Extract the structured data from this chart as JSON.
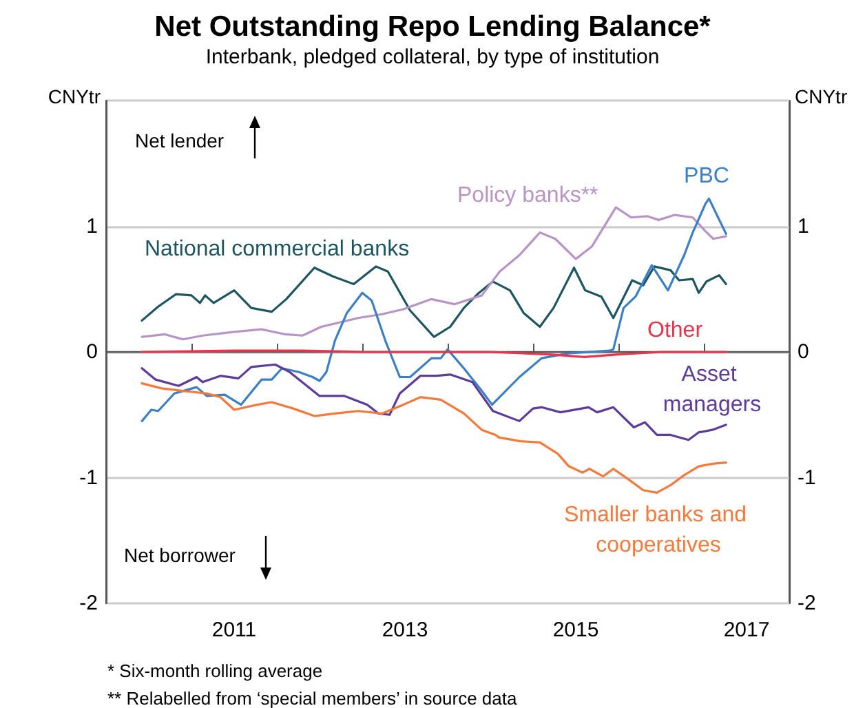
{
  "chart_data": {
    "type": "line",
    "title": "Net Outstanding Repo Lending Balance*",
    "subtitle": "Interbank, pledged collateral, by type of institution",
    "ylabel": "CNYtr",
    "y2label": "CNYtr",
    "annotations": [
      "Net lender",
      "Net borrower",
      "* Six-month rolling average",
      "** Relabelled from ‘special members’ in source data"
    ],
    "xlim": [
      2010,
      2018
    ],
    "xticks": [
      {
        "value": 2011,
        "label": null
      },
      {
        "value": 2011.5,
        "label": "2011"
      },
      {
        "value": 2012,
        "label": null
      },
      {
        "value": 2013,
        "label": null
      },
      {
        "value": 2013.5,
        "label": "2013"
      },
      {
        "value": 2014,
        "label": null
      },
      {
        "value": 2015,
        "label": null
      },
      {
        "value": 2015.5,
        "label": "2015"
      },
      {
        "value": 2016,
        "label": null
      },
      {
        "value": 2017,
        "label": null
      },
      {
        "value": 2017.5,
        "label": "2017"
      }
    ],
    "ylim": [
      -2,
      2
    ],
    "yticks": [
      -2,
      -1,
      0,
      1
    ],
    "y2lim": [
      -2,
      2
    ],
    "y2ticks": [
      -2,
      -1,
      0,
      1
    ],
    "grid": "y",
    "ref_lines": [
      {
        "axis": "y",
        "value": 0,
        "color": "#555555"
      }
    ],
    "series": [
      {
        "name": "National commercial banks",
        "color": "#1d5560",
        "x": [
          2010.42,
          2010.61,
          2010.82,
          2011.0,
          2011.1,
          2011.16,
          2011.26,
          2011.5,
          2011.7,
          2011.94,
          2012.11,
          2012.44,
          2012.66,
          2012.9,
          2013.16,
          2013.3,
          2013.56,
          2013.84,
          2014.03,
          2014.19,
          2014.35,
          2014.53,
          2014.73,
          2014.89,
          2015.08,
          2015.24,
          2015.48,
          2015.61,
          2015.8,
          2015.94,
          2016.16,
          2016.29,
          2016.42,
          2016.61,
          2016.71,
          2016.87,
          2016.94,
          2017.03,
          2017.18,
          2017.26
        ],
        "values": [
          0.25,
          0.36,
          0.46,
          0.45,
          0.39,
          0.45,
          0.39,
          0.49,
          0.35,
          0.32,
          0.42,
          0.67,
          0.6,
          0.54,
          0.68,
          0.64,
          0.33,
          0.12,
          0.2,
          0.35,
          0.46,
          0.56,
          0.49,
          0.31,
          0.2,
          0.35,
          0.67,
          0.49,
          0.44,
          0.27,
          0.57,
          0.53,
          0.68,
          0.65,
          0.57,
          0.58,
          0.47,
          0.56,
          0.61,
          0.54
        ]
      },
      {
        "name": "Policy banks**",
        "color": "#b894c6",
        "x": [
          2010.42,
          2010.69,
          2010.9,
          2011.13,
          2011.5,
          2011.82,
          2012.1,
          2012.3,
          2012.52,
          2012.95,
          2013.23,
          2013.48,
          2013.81,
          2014.08,
          2014.4,
          2014.61,
          2014.84,
          2015.08,
          2015.26,
          2015.5,
          2015.69,
          2015.97,
          2016.15,
          2016.34,
          2016.47,
          2016.66,
          2016.87,
          2017.02,
          2017.11,
          2017.26
        ],
        "values": [
          0.12,
          0.14,
          0.1,
          0.13,
          0.16,
          0.18,
          0.14,
          0.13,
          0.2,
          0.27,
          0.3,
          0.34,
          0.42,
          0.38,
          0.45,
          0.64,
          0.77,
          0.95,
          0.9,
          0.74,
          0.84,
          1.15,
          1.07,
          1.08,
          1.05,
          1.09,
          1.07,
          0.96,
          0.9,
          0.92
        ]
      },
      {
        "name": "PBC",
        "color": "#3b7fc4",
        "x": [
          2010.42,
          2010.53,
          2010.61,
          2010.8,
          2011.06,
          2011.18,
          2011.39,
          2011.58,
          2011.82,
          2011.94,
          2012.06,
          2012.26,
          2012.42,
          2012.5,
          2012.58,
          2012.68,
          2012.82,
          2013.0,
          2013.11,
          2013.27,
          2013.44,
          2013.56,
          2013.81,
          2013.92,
          2014.0,
          2014.19,
          2014.4,
          2014.52,
          2014.84,
          2015.1,
          2015.42,
          2015.9,
          2015.94,
          2016.06,
          2016.2,
          2016.39,
          2016.58,
          2016.77,
          2016.87,
          2017.02,
          2017.06,
          2017.26
        ],
        "values": [
          -0.55,
          -0.46,
          -0.47,
          -0.33,
          -0.28,
          -0.35,
          -0.34,
          -0.42,
          -0.22,
          -0.22,
          -0.13,
          -0.16,
          -0.2,
          -0.23,
          -0.16,
          0.09,
          0.31,
          0.47,
          0.41,
          0.09,
          -0.2,
          -0.2,
          -0.05,
          -0.05,
          0.02,
          -0.13,
          -0.31,
          -0.42,
          -0.2,
          -0.05,
          -0.01,
          0.01,
          0.02,
          0.35,
          0.44,
          0.69,
          0.49,
          0.77,
          0.95,
          1.18,
          1.22,
          0.94
        ]
      },
      {
        "name": "Other",
        "color": "#e9334a",
        "x": [
          2010.42,
          2011.5,
          2012.3,
          2013.0,
          2014.5,
          2015.2,
          2015.6,
          2016.0,
          2016.5,
          2017.26
        ],
        "values": [
          0,
          0.01,
          0.01,
          0,
          0,
          -0.02,
          -0.04,
          -0.02,
          0,
          0
        ]
      },
      {
        "name": "Asset managers",
        "color": "#5c3b9a",
        "x": [
          2010.42,
          2010.58,
          2010.85,
          2011.06,
          2011.13,
          2011.34,
          2011.55,
          2011.7,
          2011.98,
          2012.15,
          2012.5,
          2012.79,
          2013.06,
          2013.19,
          2013.32,
          2013.44,
          2013.68,
          2013.87,
          2014.03,
          2014.29,
          2014.53,
          2014.84,
          2015.0,
          2015.1,
          2015.32,
          2015.65,
          2015.75,
          2015.94,
          2016.18,
          2016.31,
          2016.45,
          2016.61,
          2016.82,
          2016.94,
          2017.1,
          2017.26
        ],
        "values": [
          -0.13,
          -0.22,
          -0.27,
          -0.2,
          -0.24,
          -0.19,
          -0.21,
          -0.12,
          -0.1,
          -0.16,
          -0.35,
          -0.35,
          -0.42,
          -0.49,
          -0.5,
          -0.33,
          -0.19,
          -0.19,
          -0.18,
          -0.24,
          -0.47,
          -0.55,
          -0.45,
          -0.44,
          -0.48,
          -0.44,
          -0.48,
          -0.44,
          -0.6,
          -0.56,
          -0.66,
          -0.66,
          -0.7,
          -0.64,
          -0.62,
          -0.58
        ]
      },
      {
        "name": "Smaller banks and cooperatives",
        "color": "#f4793b",
        "x": [
          2010.42,
          2010.65,
          2010.9,
          2011.18,
          2011.34,
          2011.5,
          2011.77,
          2011.94,
          2012.19,
          2012.44,
          2012.68,
          2012.95,
          2013.23,
          2013.48,
          2013.68,
          2013.92,
          2014.19,
          2014.4,
          2014.56,
          2014.6,
          2014.85,
          2015.08,
          2015.29,
          2015.42,
          2015.58,
          2015.66,
          2015.82,
          2015.94,
          2016.13,
          2016.29,
          2016.45,
          2016.61,
          2016.77,
          2016.94,
          2017.1,
          2017.26
        ],
        "values": [
          -0.25,
          -0.29,
          -0.31,
          -0.33,
          -0.36,
          -0.46,
          -0.42,
          -0.4,
          -0.45,
          -0.51,
          -0.49,
          -0.47,
          -0.49,
          -0.42,
          -0.36,
          -0.38,
          -0.49,
          -0.62,
          -0.66,
          -0.68,
          -0.71,
          -0.72,
          -0.81,
          -0.91,
          -0.96,
          -0.93,
          -0.99,
          -0.93,
          -1.02,
          -1.1,
          -1.12,
          -1.06,
          -0.98,
          -0.91,
          -0.89,
          -0.88
        ]
      }
    ]
  }
}
